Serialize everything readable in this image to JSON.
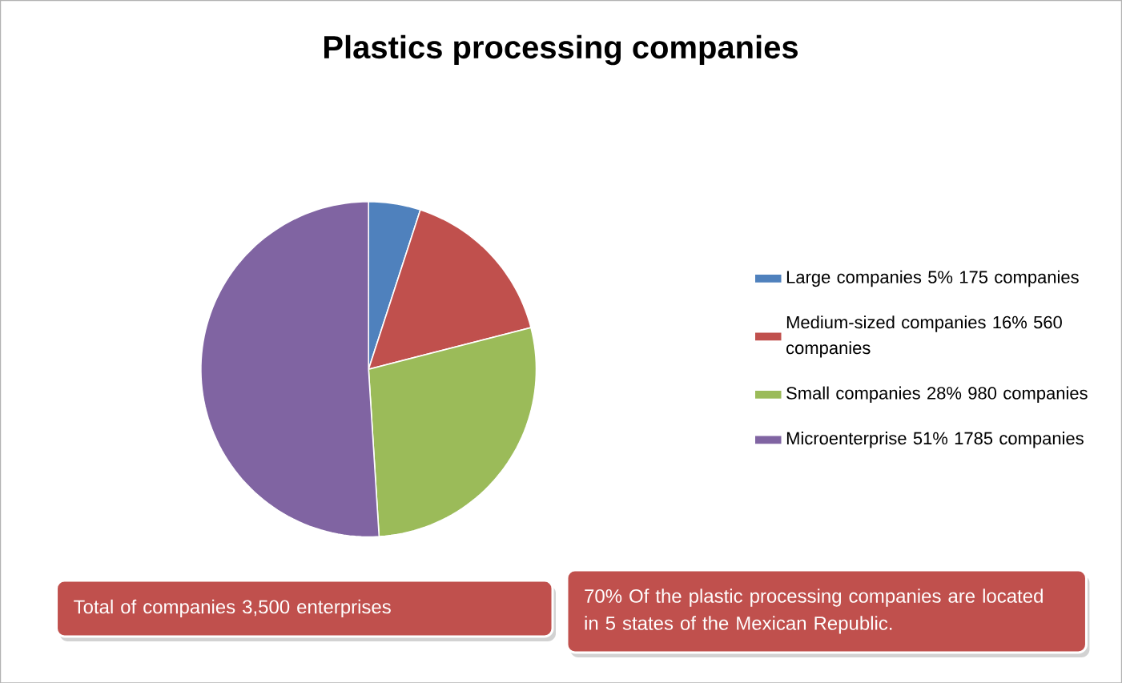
{
  "chart_data": {
    "type": "pie",
    "title": "Plastics processing companies",
    "categories": [
      "Large companies 5% 175 companies",
      "Medium-sized companies 16%  560 companies",
      "Small companies 28% 980 companies",
      "Microenterprise 51% 1785 companies"
    ],
    "values": [
      175,
      560,
      980,
      1785
    ],
    "colors": [
      "#4f81bd",
      "#c0504d",
      "#9bbb59",
      "#8064a2"
    ],
    "legend": "right",
    "annotations": [
      "Total of companies 3,500  enterprises",
      "70% Of the plastic processing companies are located in 5 states of the Mexican Republic."
    ]
  }
}
